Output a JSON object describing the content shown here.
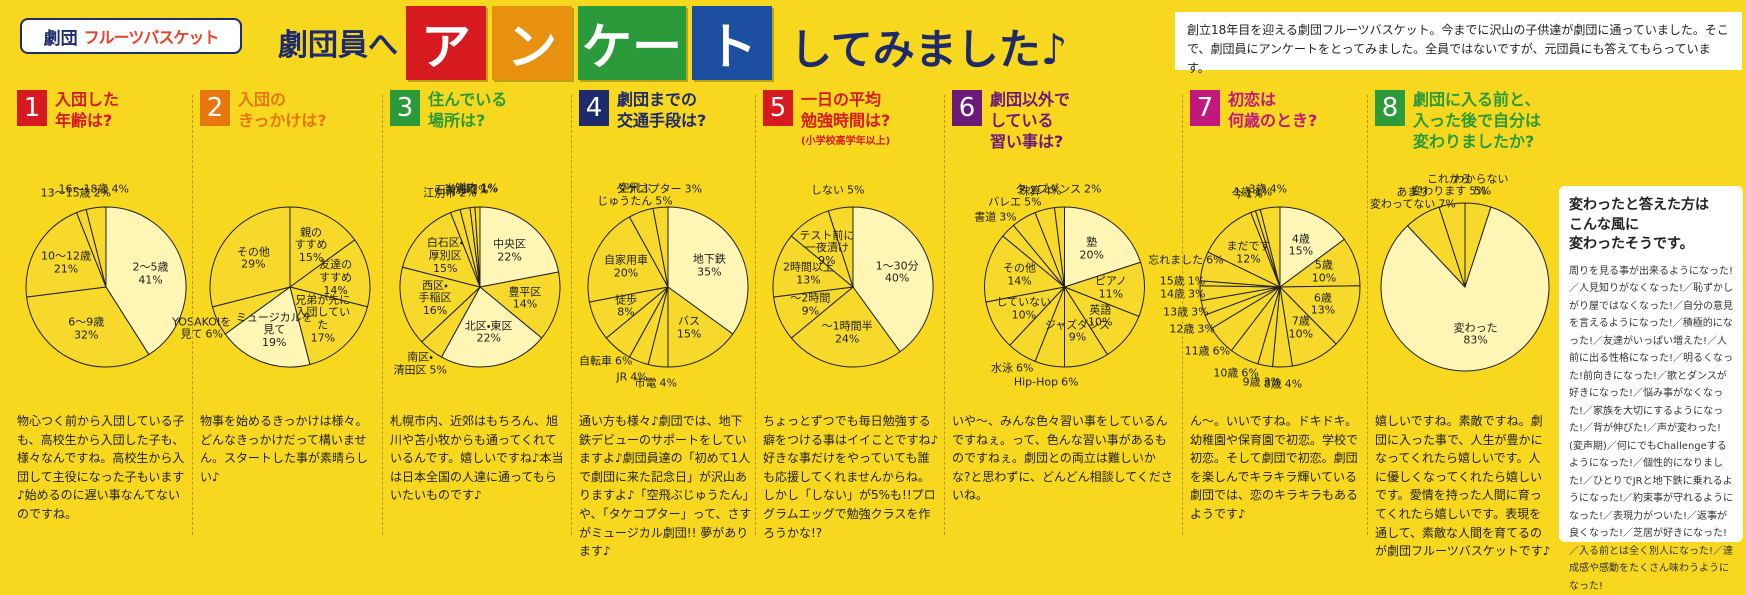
{
  "header": {
    "logo": "劇団",
    "logo_name": "フルーツバスケット",
    "lead": "劇団員へ",
    "title_blocks": [
      "ア",
      "ン",
      "ケー",
      "ト"
    ],
    "tail": "してみました♪"
  },
  "intro": "創立18年目を迎える劇団フルーツバスケット。今までに沢山の子供達が劇団に通っていました。そこで、劇団員にアンケートをとってみました。全員ではないですが、元団員にも答えてもらっています。",
  "chart_data": [
    {
      "type": "pie",
      "number": "1",
      "title": "入団した\n年齢は?",
      "color": "#d71920",
      "categories": [
        "2～5歳",
        "6～9歳",
        "10～12歳",
        "13～15歳",
        "16～18歳"
      ],
      "values": [
        41,
        32,
        21,
        2,
        4
      ],
      "value_labels": [
        "41%",
        "32%",
        "21%",
        "2%",
        "4%"
      ],
      "colors": [
        "#fff6b5",
        "#f6d92a",
        "#f6d92a",
        "#f6d92a",
        "#f6d92a"
      ],
      "comment": "物心つく前から入団している子も、高校生から入団した子も、様々なんですね。高校生から入団して主役になった子もいます♪始めるのに遅い事なんてないのですね。"
    },
    {
      "type": "pie",
      "number": "2",
      "title": "入団の\nきっかけは?",
      "color": "#e8760f",
      "categories": [
        "親の\nすすめ",
        "友達の\nすすめ",
        "兄弟が先に\n入団していた",
        "ミュージカルを\n見て",
        "YOSAKOIを\n見て",
        "その他"
      ],
      "values": [
        15,
        14,
        17,
        19,
        6,
        29
      ],
      "value_labels": [
        "15%",
        "14%",
        "17%",
        "19%",
        "6%",
        "29%"
      ],
      "colors": [
        "#f6d92a",
        "#f6d92a",
        "#f6d92a",
        "#fff6b5",
        "#f6d92a",
        "#f6d92a"
      ],
      "comment": "物事を始めるきっかけは様々。どんなきっかけだって構いません。スタートした事が素晴らしい♪"
    },
    {
      "type": "pie",
      "number": "3",
      "title": "住んでいる\n場所は?",
      "color": "#2a9a3a",
      "categories": [
        "中央区",
        "豊平区",
        "北区・東区",
        "南区・\n清田区",
        "西区・\n手稲区",
        "白石区・\n厚別区",
        "江別市",
        "石狩市",
        "当別町",
        "道内"
      ],
      "values": [
        22,
        14,
        22,
        5,
        16,
        15,
        2,
        2,
        1,
        1
      ],
      "value_labels": [
        "22%",
        "14%",
        "22%",
        "5%",
        "16%",
        "15%",
        "2%",
        "2%",
        "1%",
        "1%"
      ],
      "colors": [
        "#fff6b5",
        "#f6d92a",
        "#fff6b5",
        "#f6d92a",
        "#f6d92a",
        "#f6d92a",
        "#f6d92a",
        "#f6d92a",
        "#f6d92a",
        "#f6d92a"
      ],
      "comment": "札幌市内、近郊はもちろん、旭川や苫小牧からも通ってくれているんです。嬉しいですね♪本当は日本全国の人達に通ってもらいたいものです♪"
    },
    {
      "type": "pie",
      "number": "4",
      "title": "劇団までの\n交通手段は?",
      "color": "#1d2a6b",
      "categories": [
        "地下鉄",
        "バス",
        "市電",
        "JR",
        "自転車",
        "徒歩",
        "自家用車",
        "空飛ぶ\nじゅうたん",
        "タケコプター"
      ],
      "values": [
        35,
        15,
        4,
        4,
        6,
        8,
        20,
        5,
        3
      ],
      "value_labels": [
        "35%",
        "15%",
        "4%",
        "4%",
        "6%",
        "8%",
        "20%",
        "5%",
        "3%"
      ],
      "colors": [
        "#fff6b5",
        "#f6d92a",
        "#f6d92a",
        "#f6d92a",
        "#f6d92a",
        "#f6d92a",
        "#f6d92a",
        "#f6d92a",
        "#f6d92a"
      ],
      "comment": "通い方も様々♪劇団では、地下鉄デビューのサポートをしていますよ♪劇団員達の「初めて1人で劇団に来た記念日」が沢山ありますよ♪「空飛ぶじゅうたん」や、「タケコプター」って、さすがミュージカル劇団!! 夢があります♪"
    },
    {
      "type": "pie",
      "number": "5",
      "title": "一日の平均\n勉強時間は?",
      "subtitle": "(小学校高学年以上)",
      "color": "#d71920",
      "categories": [
        "1～30分",
        "～1時間半",
        "～2時間",
        "2時間以上",
        "テスト前に\n一夜漬け",
        "しない"
      ],
      "values": [
        40,
        24,
        9,
        13,
        9,
        5
      ],
      "value_labels": [
        "40%",
        "24%",
        "9%",
        "13%",
        "9%",
        "5%"
      ],
      "colors": [
        "#fff6b5",
        "#f6d92a",
        "#f6d92a",
        "#f6d92a",
        "#f6d92a",
        "#f6d92a"
      ],
      "comment": "ちょっとずつでも毎日勉強する癖をつける事はイイことですね♪好きな事だけをやっていても誰も応援してくれませんからね。しかし「しない」が5%も!!プログラムエッグで勉強クラスを作ろうかな!?"
    },
    {
      "type": "pie",
      "number": "6",
      "title": "劇団以外で\nしている\n習い事は?",
      "color": "#6a1b7a",
      "categories": [
        "塾",
        "ピアノ",
        "英語",
        "ジャズダンス",
        "Hip-Hop",
        "水泳",
        "していない",
        "その他",
        "書道",
        "バレエ",
        "珠算",
        "タップダンス"
      ],
      "values": [
        20,
        11,
        10,
        9,
        6,
        6,
        10,
        14,
        3,
        5,
        4,
        2
      ],
      "value_labels": [
        "20%",
        "11%",
        "10%",
        "9%",
        "6%",
        "6%",
        "10%",
        "14%",
        "3%",
        "5%",
        "4%",
        "2%"
      ],
      "colors": [
        "#fff6b5",
        "#f6d92a",
        "#f6d92a",
        "#f6d92a",
        "#f6d92a",
        "#f6d92a",
        "#f6d92a",
        "#f6d92a",
        "#f6d92a",
        "#f6d92a",
        "#f6d92a",
        "#f6d92a"
      ],
      "comment": "いや～、みんな色々習い事をしているんですねぇ。って、色んな習い事があるものですねぇ。劇団との両立は難しいかな?と思わずに、どんどん相談してくださいね。"
    },
    {
      "type": "pie",
      "number": "7",
      "title": "初恋は\n何歳のとき?",
      "color": "#c2177c",
      "categories": [
        "4歳",
        "5歳",
        "6歳",
        "7歳",
        "8歳",
        "9歳",
        "10歳",
        "11歳",
        "12歳",
        "13歳",
        "14歳",
        "15歳",
        "忘れました",
        "まだです",
        "今",
        "1歳",
        "3歳"
      ],
      "values": [
        15,
        10,
        13,
        10,
        4,
        3,
        6,
        6,
        3,
        3,
        3,
        1,
        6,
        12,
        1,
        1,
        4
      ],
      "value_labels": [
        "15%",
        "10%",
        "13%",
        "10%",
        "4%",
        "3%",
        "6%",
        "6%",
        "3%",
        "3%",
        "3%",
        "1%",
        "6%",
        "12%",
        "1%",
        "1%",
        "4%"
      ],
      "colors": [
        "#fff6b5",
        "#f6d92a",
        "#f6d92a",
        "#f6d92a",
        "#f6d92a",
        "#f6d92a",
        "#f6d92a",
        "#f6d92a",
        "#f6d92a",
        "#f6d92a",
        "#f6d92a",
        "#f6d92a",
        "#f6d92a",
        "#f6d92a",
        "#f6d92a",
        "#f6d92a",
        "#f6d92a"
      ],
      "comment": "ん～。いいですね。ドキドキ。幼稚園や保育園で初恋。学校で初恋。そして劇団で初恋。劇団を楽しんでキラキラ輝いている劇団では、恋のキラキラもあるようです♪"
    },
    {
      "type": "pie",
      "number": "8",
      "title": "劇団に入る前と、\n入った後で自分は変わりましたか?",
      "color": "#2a9a3a",
      "categories": [
        "わからない",
        "変わった",
        "あまり\n変わってない",
        "これから\n変わります"
      ],
      "values": [
        5,
        83,
        7,
        5
      ],
      "value_labels": [
        "5%",
        "83%",
        "7%",
        "5%"
      ],
      "colors": [
        "#f6d92a",
        "#fff6b5",
        "#f6d92a",
        "#f6d92a"
      ],
      "comment": "嬉しいですね。素敵ですね。劇団に入った事で、人生が豊かになってくれたら嬉しいです。人に優しくなってくれたら嬉しいです。愛情を持った人間に育ってくれたら嬉しいです。表現を通して、素敵な人間を育てるのが劇団フルーツバスケットです♪"
    }
  ],
  "side_box": {
    "title": "変わったと答えた方は\nこんな風に\n変わったそうです。",
    "body": "周りを見る事が出来るようになった!／人見知りがなくなった!／恥ずかしがり屋ではなくなった!／自分の意見を言えるようになった!／積極的になった!／友達がいっぱい増えた!／人前に出る性格になった!／明るくなった!前向きになった!／歌とダンスが好きになった!／悩み事がなくなった!／家族を大切にするようになった!／背が伸びた!／声が変わった!(変声期)／何にでもChallengeするようになった!／個性的になりました!／ひとりでJRと地下鉄に乗れるようになった!／約束事が守れるようになった!／表現力がついた!／返事が良くなった!／芝居が好きになった!／入る前とは全く別人になった!／達成感や感動をたくさん味わうようになった!"
  }
}
